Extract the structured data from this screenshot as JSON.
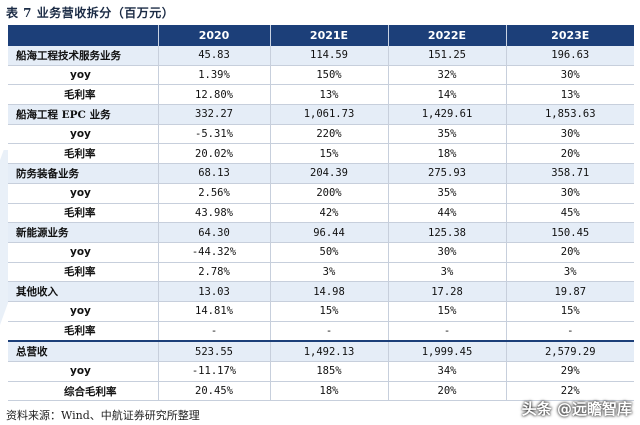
{
  "caption": "表 7 业务营收拆分（百万元）",
  "columns": [
    "",
    "2020",
    "2021E",
    "2022E",
    "2023E"
  ],
  "rows": [
    {
      "label": "船海工程技术服务业务",
      "kind": "segment",
      "values": [
        "45.83",
        "114.59",
        "151.25",
        "196.63"
      ]
    },
    {
      "label": "yoy",
      "kind": "yoy",
      "values": [
        "1.39%",
        "150%",
        "32%",
        "30%"
      ]
    },
    {
      "label": "毛利率",
      "kind": "margin",
      "values": [
        "12.80%",
        "13%",
        "14%",
        "13%"
      ]
    },
    {
      "label": "船海工程 EPC 业务",
      "kind": "segment",
      "values": [
        "332.27",
        "1,061.73",
        "1,429.61",
        "1,853.63"
      ]
    },
    {
      "label": "yoy",
      "kind": "yoy",
      "values": [
        "-5.31%",
        "220%",
        "35%",
        "30%"
      ]
    },
    {
      "label": "毛利率",
      "kind": "margin",
      "values": [
        "20.02%",
        "15%",
        "18%",
        "20%"
      ]
    },
    {
      "label": "防务装备业务",
      "kind": "segment",
      "values": [
        "68.13",
        "204.39",
        "275.93",
        "358.71"
      ]
    },
    {
      "label": "yoy",
      "kind": "yoy",
      "values": [
        "2.56%",
        "200%",
        "35%",
        "30%"
      ]
    },
    {
      "label": "毛利率",
      "kind": "margin",
      "values": [
        "43.98%",
        "42%",
        "44%",
        "45%"
      ]
    },
    {
      "label": "新能源业务",
      "kind": "segment",
      "values": [
        "64.30",
        "96.44",
        "125.38",
        "150.45"
      ]
    },
    {
      "label": "yoy",
      "kind": "yoy",
      "values": [
        "-44.32%",
        "50%",
        "30%",
        "20%"
      ]
    },
    {
      "label": "毛利率",
      "kind": "margin",
      "values": [
        "2.78%",
        "3%",
        "3%",
        "3%"
      ]
    },
    {
      "label": "其他收入",
      "kind": "segment",
      "values": [
        "13.03",
        "14.98",
        "17.28",
        "19.87"
      ]
    },
    {
      "label": "yoy",
      "kind": "yoy",
      "values": [
        "14.81%",
        "15%",
        "15%",
        "15%"
      ]
    },
    {
      "label": "毛利率",
      "kind": "margin",
      "values": [
        "-",
        "-",
        "-",
        "-"
      ]
    },
    {
      "label": "总营收",
      "kind": "segment",
      "values": [
        "523.55",
        "1,492.13",
        "1,999.45",
        "2,579.29"
      ]
    },
    {
      "label": "yoy",
      "kind": "yoy",
      "values": [
        "-11.17%",
        "185%",
        "34%",
        "29%"
      ]
    },
    {
      "label": "综合毛利率",
      "kind": "margin",
      "values": [
        "20.45%",
        "18%",
        "20%",
        "22%"
      ]
    }
  ],
  "source": "资料来源：Wind、中航证券研究所整理",
  "watermark": "头条 @远瞻智库",
  "colors": {
    "header_bg": "#1c3f79",
    "alt_row_bg": "#e5edf7",
    "border": "#c7cfdc"
  }
}
